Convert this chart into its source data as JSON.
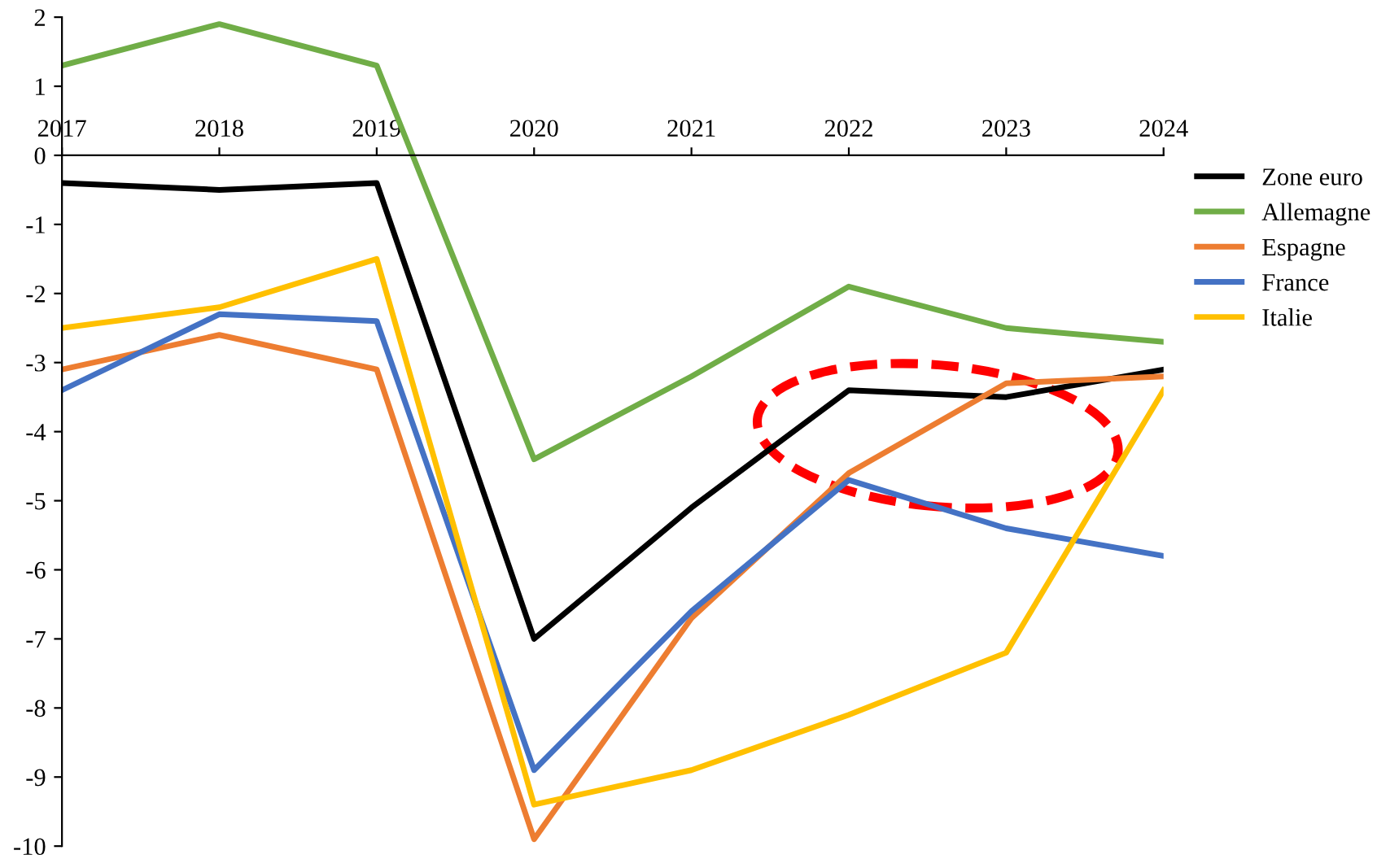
{
  "chart_data": {
    "type": "line",
    "x": [
      2017,
      2018,
      2019,
      2020,
      2021,
      2022,
      2023,
      2024
    ],
    "series": [
      {
        "name": "Zone euro",
        "color": "#000000",
        "values": [
          -0.4,
          -0.5,
          -0.4,
          -7.0,
          -5.1,
          -3.4,
          -3.5,
          -3.1
        ]
      },
      {
        "name": "Allemagne",
        "color": "#70ad47",
        "values": [
          1.3,
          1.9,
          1.3,
          -4.4,
          -3.2,
          -1.9,
          -2.5,
          -2.7
        ]
      },
      {
        "name": "Espagne",
        "color": "#ed7d31",
        "values": [
          -3.1,
          -2.6,
          -3.1,
          -9.9,
          -6.7,
          -4.6,
          -3.3,
          -3.2
        ]
      },
      {
        "name": "France",
        "color": "#4472c4",
        "values": [
          -3.4,
          -2.3,
          -2.4,
          -8.9,
          -6.6,
          -4.7,
          -5.4,
          -5.8
        ]
      },
      {
        "name": "Italie",
        "color": "#ffc000",
        "values": [
          -2.5,
          -2.2,
          -1.5,
          -9.4,
          -8.9,
          -8.1,
          -7.2,
          -3.4
        ]
      }
    ],
    "xlim": [
      2017,
      2024
    ],
    "xticks": [
      2017,
      2018,
      2019,
      2020,
      2021,
      2022,
      2023,
      2024
    ],
    "ylim": [
      -10,
      2
    ],
    "yticks": [
      -10,
      -9,
      -8,
      -7,
      -6,
      -5,
      -4,
      -3,
      -2,
      -1,
      0,
      1,
      2
    ],
    "grid": false,
    "legend": "right",
    "marker": "none",
    "line_style": "solid"
  }
}
